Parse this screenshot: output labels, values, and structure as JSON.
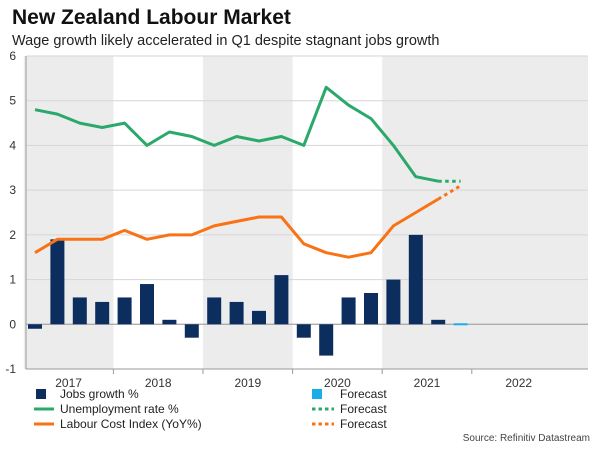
{
  "title": "New Zealand Labour Market",
  "subtitle": "Wage growth likely accelerated in Q1 despite stagnant jobs growth",
  "source": "Source: Refinitiv Datastream",
  "colors": {
    "jobs": "#0b2e5e",
    "jobs_forecast": "#19aee6",
    "unemployment": "#2aa96b",
    "lci": "#f97316",
    "shade": "#ececec",
    "grid": "#d6d6d6"
  },
  "chart_data": {
    "type": "bar-line",
    "title": "New Zealand Labour Market",
    "ylim": [
      -1,
      6
    ],
    "yticks": [
      -1,
      0,
      1,
      2,
      3,
      4,
      5,
      6
    ],
    "year_labels": [
      "2017",
      "2018",
      "2019",
      "2020",
      "2021",
      "2022"
    ],
    "quarters_per_year": 4,
    "start_quarter_index": 0,
    "shaded_years": [
      "2017",
      "2019",
      "2021"
    ],
    "series": [
      {
        "name": "Jobs growth %",
        "kind": "bar",
        "values": [
          -0.1,
          1.9,
          0.6,
          0.5,
          0.6,
          0.9,
          0.1,
          -0.3,
          0.6,
          0.5,
          0.3,
          1.1,
          -0.3,
          -0.7,
          0.6,
          0.7,
          1.0,
          2.0,
          0.1
        ]
      },
      {
        "name": "Forecast",
        "kind": "bar-forecast",
        "values": [
          0.0
        ]
      },
      {
        "name": "Unemployment rate %",
        "kind": "line",
        "values": [
          4.8,
          4.7,
          4.5,
          4.4,
          4.5,
          4.0,
          4.3,
          4.2,
          4.0,
          4.2,
          4.1,
          4.2,
          4.0,
          5.3,
          4.9,
          4.6,
          4.0,
          3.3,
          3.2
        ]
      },
      {
        "name": "Forecast",
        "kind": "line-forecast",
        "values": [
          3.2,
          3.2
        ]
      },
      {
        "name": "Labour Cost Index (YoY%)",
        "kind": "line",
        "values": [
          1.6,
          1.9,
          1.9,
          1.9,
          2.1,
          1.9,
          2.0,
          2.0,
          2.2,
          2.3,
          2.4,
          2.4,
          1.8,
          1.6,
          1.5,
          1.6,
          2.2,
          2.5,
          2.8
        ]
      },
      {
        "name": "Forecast",
        "kind": "line-forecast",
        "values": [
          2.8,
          3.1
        ]
      }
    ]
  }
}
